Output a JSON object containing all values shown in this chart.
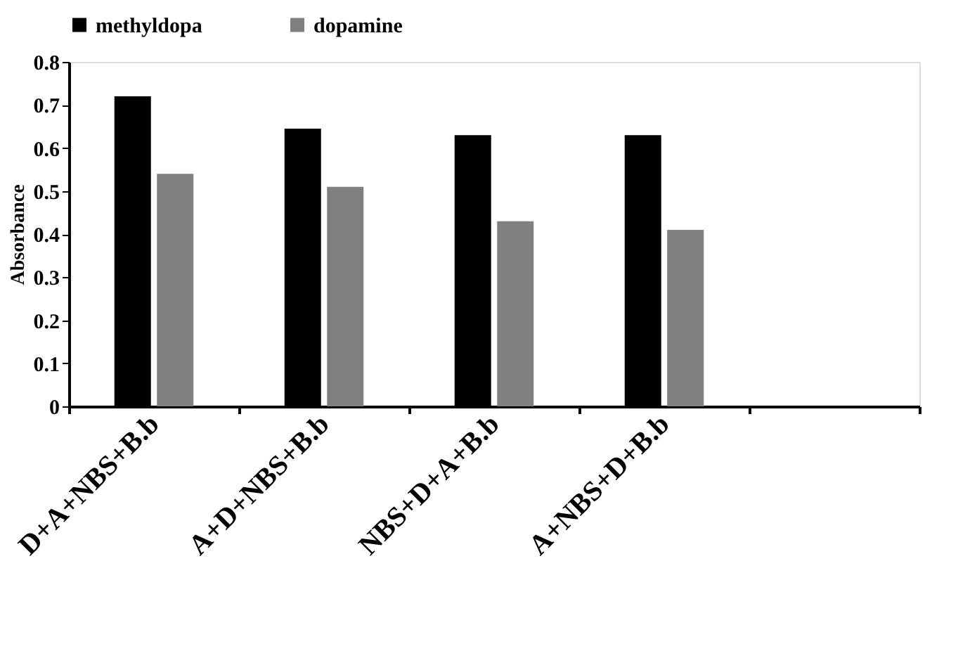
{
  "chart_data": {
    "type": "bar",
    "ylabel": "Absorbance",
    "categories": [
      "D+A+NBS+B.b",
      "A+D+NBS+B.b",
      "NBS+D+A+B.b",
      "A+NBS+D+B.b",
      null
    ],
    "series": [
      {
        "name": "methyldopa",
        "color": "#000000",
        "values": [
          0.72,
          0.645,
          0.63,
          0.63,
          null
        ]
      },
      {
        "name": "dopamine",
        "color": "#808080",
        "values": [
          0.54,
          0.51,
          0.43,
          0.41,
          null
        ]
      }
    ],
    "ylim": [
      0,
      0.8
    ],
    "yticks": [
      0,
      0.1,
      0.2,
      0.3,
      0.4,
      0.5,
      0.6,
      0.7,
      0.8
    ],
    "grid": false,
    "legend": "top"
  }
}
